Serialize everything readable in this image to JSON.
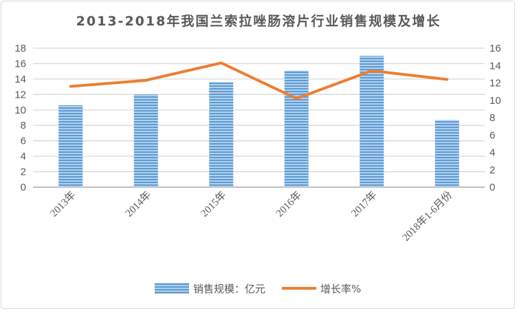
{
  "chart_data": {
    "type": "bar+line",
    "title": "2013-2018年我国兰索拉唑肠溶片行业销售规模及增长",
    "categories": [
      "2013年",
      "2014年",
      "2015年",
      "2016年",
      "2017年",
      "2018年1-6月份"
    ],
    "series": [
      {
        "name": "销售规模：亿元",
        "type": "bar",
        "axis": "left",
        "color": "#5B9BD5",
        "values": [
          10.6,
          12.0,
          13.6,
          15.1,
          17.0,
          8.7
        ]
      },
      {
        "name": "增长率%",
        "type": "line",
        "axis": "right",
        "color": "#ED7D31",
        "values": [
          11.6,
          12.3,
          14.3,
          10.2,
          13.4,
          12.4
        ]
      }
    ],
    "y_left": {
      "range": [
        0,
        18
      ],
      "ticks": [
        "0",
        "2",
        "4",
        "6",
        "8",
        "10",
        "12",
        "14",
        "16",
        "18"
      ]
    },
    "y_right": {
      "range": [
        0,
        16
      ],
      "ticks": [
        "0",
        "2",
        "4",
        "6",
        "8",
        "10",
        "12",
        "14",
        "16"
      ]
    },
    "grid": true,
    "legend_position": "bottom"
  }
}
